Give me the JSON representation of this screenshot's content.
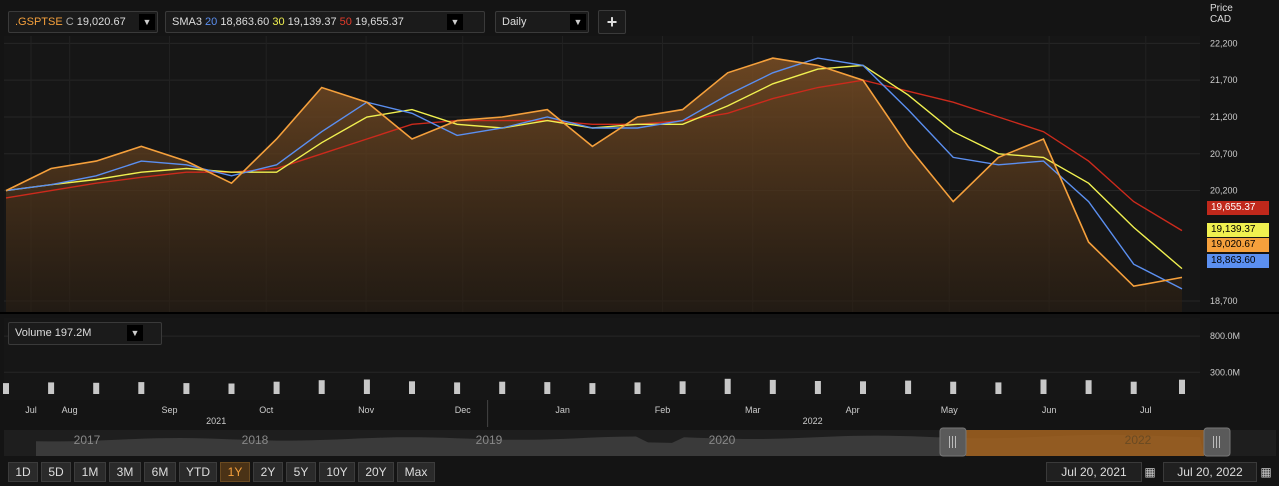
{
  "header": {
    "symbol": ".GSPTSE",
    "close_prefix": "C",
    "close_value": "19,020.67",
    "sma_label": "SMA3",
    "sma_periods": [
      "20",
      "30",
      "50"
    ],
    "sma_values": [
      "18,863.60",
      "19,139.37",
      "19,655.37"
    ],
    "interval": "Daily",
    "add_symbol": "+"
  },
  "axis": {
    "price_label": "Price",
    "currency_label": "CAD",
    "price_ticks": [
      "22,200",
      "21,700",
      "21,200",
      "20,700",
      "20,200",
      "18,700"
    ],
    "volume_ticks": [
      "800.0M",
      "300.0M"
    ],
    "months": [
      "Jul",
      "Aug",
      "Sep",
      "Oct",
      "Nov",
      "Dec",
      "Jan",
      "Feb",
      "Mar",
      "Apr",
      "May",
      "Jun",
      "Jul"
    ],
    "years": [
      "2021",
      "2022"
    ]
  },
  "badges": {
    "sma50": "19,655.37",
    "sma30": "19,139.37",
    "close": "19,020.67",
    "sma20": "18,863.60"
  },
  "volume": {
    "label": "Volume",
    "value": "197.2M"
  },
  "navigator": {
    "years": [
      "2017",
      "2018",
      "2019",
      "2020",
      "2022"
    ]
  },
  "timeframes": [
    "1D",
    "5D",
    "1M",
    "3M",
    "6M",
    "YTD",
    "1Y",
    "2Y",
    "5Y",
    "10Y",
    "20Y",
    "Max"
  ],
  "active_timeframe": "1Y",
  "date_range": {
    "from": "Jul 20, 2021",
    "to": "Jul 20, 2022"
  },
  "colors": {
    "price": "#f5a03c",
    "sma20": "#5b8ff0",
    "sma30": "#f0f050",
    "sma50": "#cc2a1c",
    "background": "#141414",
    "volume": "#c8c8c8"
  },
  "chart_data": {
    "type": "line",
    "x": [
      "2021-07-20",
      "2021-08-03",
      "2021-08-17",
      "2021-08-31",
      "2021-09-14",
      "2021-09-28",
      "2021-10-12",
      "2021-10-26",
      "2021-11-09",
      "2021-11-23",
      "2021-12-07",
      "2021-12-21",
      "2022-01-04",
      "2022-01-18",
      "2022-02-01",
      "2022-02-15",
      "2022-03-01",
      "2022-03-15",
      "2022-03-29",
      "2022-04-12",
      "2022-04-26",
      "2022-05-10",
      "2022-05-24",
      "2022-06-07",
      "2022-06-21",
      "2022-07-05",
      "2022-07-20"
    ],
    "series": [
      {
        "name": ".GSPTSE",
        "values": [
          20200,
          20500,
          20600,
          20800,
          20600,
          20300,
          20900,
          21600,
          21400,
          20900,
          21150,
          21200,
          21300,
          20800,
          21200,
          21300,
          21800,
          22000,
          21900,
          21700,
          20800,
          20050,
          20650,
          20900,
          19500,
          18900,
          19020.67
        ]
      },
      {
        "name": "20",
        "values": [
          20200,
          20280,
          20400,
          20600,
          20550,
          20400,
          20550,
          21000,
          21400,
          21250,
          20950,
          21050,
          21200,
          21050,
          21050,
          21150,
          21500,
          21800,
          22000,
          21900,
          21300,
          20650,
          20550,
          20600,
          20050,
          19200,
          18863.6
        ]
      },
      {
        "name": "30",
        "values": [
          20200,
          20280,
          20350,
          20450,
          20500,
          20450,
          20450,
          20850,
          21200,
          21300,
          21100,
          21050,
          21150,
          21050,
          21100,
          21100,
          21350,
          21650,
          21850,
          21900,
          21500,
          21000,
          20700,
          20650,
          20300,
          19700,
          19139.37
        ]
      },
      {
        "name": "50",
        "values": [
          20100,
          20200,
          20300,
          20380,
          20450,
          20450,
          20500,
          20700,
          20900,
          21100,
          21150,
          21150,
          21150,
          21100,
          21100,
          21150,
          21250,
          21450,
          21600,
          21700,
          21550,
          21400,
          21200,
          21000,
          20600,
          20050,
          19655.37
        ]
      }
    ],
    "volume_millions": [
      150,
      160,
      155,
      165,
      150,
      145,
      170,
      190,
      200,
      175,
      160,
      170,
      165,
      150,
      160,
      175,
      210,
      195,
      180,
      175,
      185,
      170,
      160,
      200,
      190,
      170,
      197.2
    ],
    "xlabel": "",
    "ylabel": "Price CAD",
    "ylim": [
      18550,
      22300
    ],
    "volume_ylim": [
      0,
      1050
    ],
    "legend": "top-left",
    "grid": true
  }
}
